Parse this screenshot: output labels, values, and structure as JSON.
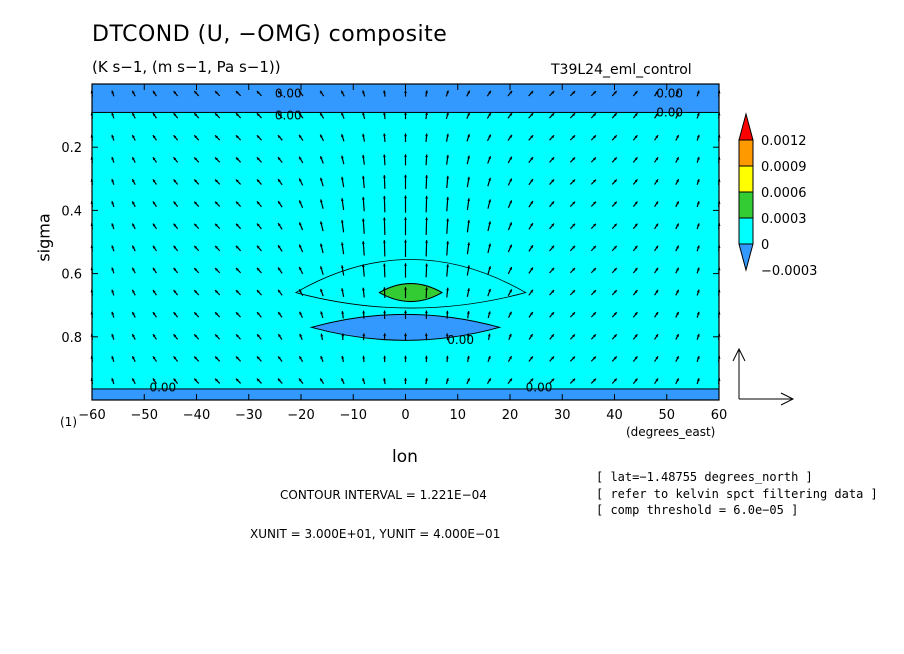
{
  "colors": {
    "cyan": "#00ffff",
    "blue": "#3399ff",
    "green": "#33cc33",
    "yellow": "#ffff00",
    "orange": "#ff9900",
    "red": "#ff0000"
  },
  "header": {
    "title": "DTCOND (U, −OMG) composite",
    "units": "(K s−1, (m s−1, Pa s−1))",
    "experiment": "T39L24_eml_control"
  },
  "footer": {
    "plot_label": "(1)",
    "contour_interval": "CONTOUR INTERVAL = 1.221E−04",
    "xy_unit": "XUNIT = 3.000E+01, YUNIT = 4.000E−01",
    "notes": [
      "[ lat=−1.48755 degrees_north ]",
      "[ refer to kelvin spct filtering data ]",
      "[ comp threshold = 6.0e−05 ]"
    ]
  },
  "chart_data": {
    "type": "heatmap",
    "title": "DTCOND (U, −OMG) composite",
    "xlabel": "lon",
    "xunits": "(degrees_east)",
    "ylabel": "sigma",
    "xlim": [
      -60,
      60
    ],
    "ylim": [
      1.0,
      0.0
    ],
    "y_inverted": true,
    "x_ticks": [
      -60,
      -50,
      -40,
      -30,
      -20,
      -10,
      0,
      10,
      20,
      30,
      40,
      50,
      60
    ],
    "x_tick_labels": [
      "−60",
      "−50",
      "−40",
      "−30",
      "−20",
      "−10",
      "0",
      "10",
      "20",
      "30",
      "40",
      "50",
      "60"
    ],
    "y_ticks": [
      0.2,
      0.4,
      0.6,
      0.8
    ],
    "y_tick_labels": [
      "0.2",
      "0.4",
      "0.6",
      "0.8"
    ],
    "colorbar": {
      "levels": [
        "0.0012",
        "0.0009",
        "0.0006",
        "0.0003",
        "0",
        "−0.0003"
      ],
      "colors": [
        "#ff0000",
        "#ff9900",
        "#ffff00",
        "#33cc33",
        "#00ffff",
        "#3399ff"
      ]
    },
    "regions": [
      {
        "name": "upper-negative-band",
        "value_range": [
          -0.0003,
          0
        ],
        "x_range": [
          -60,
          60
        ],
        "y_range": [
          0.0,
          0.09
        ]
      },
      {
        "name": "lower-negative-band",
        "value_range": [
          -0.0003,
          0
        ],
        "x_range": [
          -60,
          60
        ],
        "y_range": [
          0.965,
          1.0
        ]
      },
      {
        "name": "negative-lens",
        "value_range": [
          -0.0003,
          0
        ],
        "center_x": 0,
        "center_y": 0.77,
        "x_range": [
          -18,
          18
        ]
      },
      {
        "name": "positive-core",
        "value_range": [
          0.0003,
          0.0006
        ],
        "center_x": 1,
        "center_y": 0.66,
        "x_range": [
          -6,
          6
        ]
      }
    ],
    "contour_labels": [
      {
        "text": "0.00",
        "x": -25,
        "y": 0.03
      },
      {
        "text": "0.00",
        "x": 48,
        "y": 0.03
      },
      {
        "text": "0.00",
        "x": -25,
        "y": 0.1
      },
      {
        "text": "0.00",
        "x": 48,
        "y": 0.09
      },
      {
        "text": "0.00",
        "x": 8,
        "y": 0.81
      },
      {
        "text": "0.00",
        "x": -49,
        "y": 0.96
      },
      {
        "text": "0.00",
        "x": 23,
        "y": 0.96
      }
    ],
    "vector_unit": {
      "xunit": 30.0,
      "yunit": 0.4
    }
  }
}
